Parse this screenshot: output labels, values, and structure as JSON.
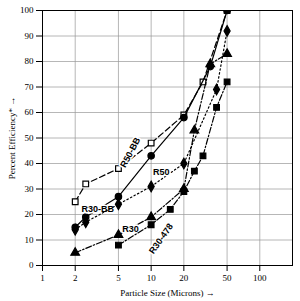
{
  "chart_data": {
    "type": "line",
    "log": "x",
    "grid": true,
    "xlabel": "Particle Size (Microns)",
    "ylabel": "Percent Efficiency*",
    "xlim": [
      1,
      200
    ],
    "xticks": [
      1,
      2,
      5,
      10,
      20,
      50,
      100
    ],
    "ylim": [
      0,
      100
    ],
    "yticks": [
      0,
      10,
      20,
      30,
      40,
      50,
      60,
      70,
      80,
      90,
      100
    ],
    "series": [
      {
        "name": "R50-BB",
        "color": "#000000",
        "marker": "open-square",
        "line_style": "dashed",
        "x": [
          2,
          2.5,
          5,
          10,
          20,
          30,
          50
        ],
        "values": [
          25,
          32,
          38,
          48,
          59,
          72,
          100
        ]
      },
      {
        "name": "R30-BB",
        "color": "#000000",
        "marker": "circle",
        "line_style": "solid",
        "x": [
          2,
          2.5,
          5,
          10,
          20,
          35,
          50
        ],
        "values": [
          15,
          19,
          27,
          43,
          58,
          78,
          100
        ]
      },
      {
        "name": "R50",
        "color": "#000000",
        "marker": "diamond",
        "line_style": "dotted",
        "x": [
          2,
          2.5,
          5,
          10,
          20,
          40,
          50
        ],
        "values": [
          14,
          17,
          24,
          31,
          40,
          69,
          92
        ]
      },
      {
        "name": "R30",
        "color": "#000000",
        "marker": "triangle",
        "line_style": "dashdot",
        "x": [
          2,
          5,
          10,
          20,
          25,
          35,
          50
        ],
        "values": [
          5,
          12,
          19,
          30,
          53,
          79,
          83
        ]
      },
      {
        "name": "R30-478",
        "color": "#000000",
        "marker": "square",
        "line_style": "dashdot",
        "x": [
          5,
          10,
          15,
          20,
          25,
          30,
          40,
          50
        ],
        "values": [
          8,
          16,
          22,
          29,
          37,
          43,
          62,
          72
        ]
      }
    ]
  }
}
